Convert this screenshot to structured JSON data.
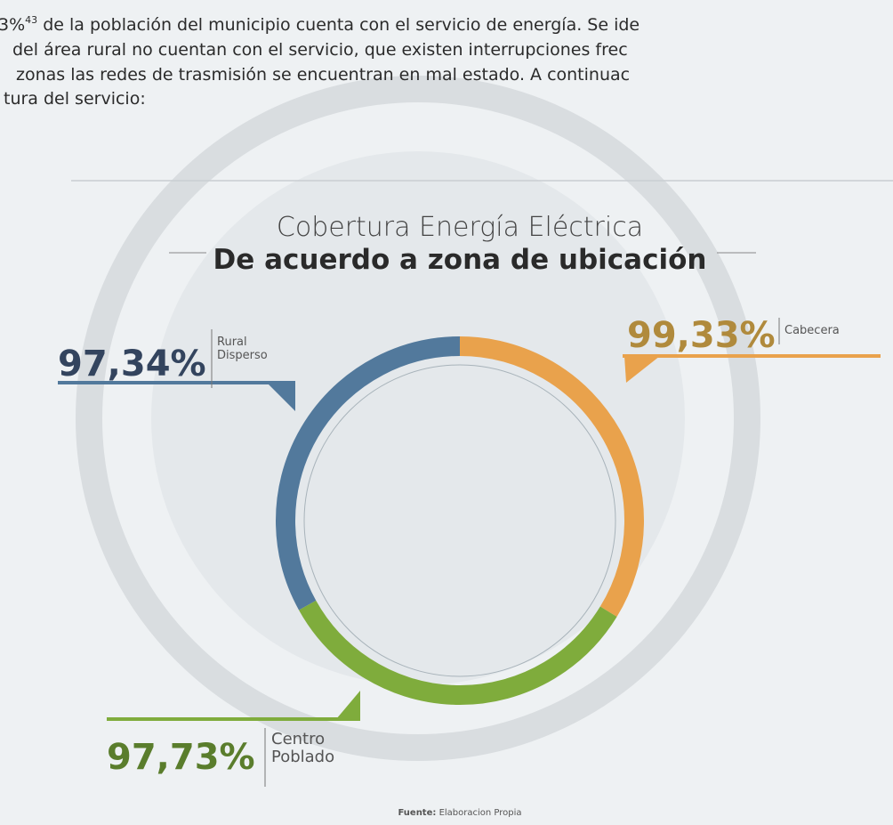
{
  "paragraph": {
    "line_0_start": "3%",
    "line_0_sup": "43",
    "line_0_end": " de la población del municipio cuenta con el servicio de energía. Se ide",
    "line_1": "del área rural no cuentan con el servicio, que existen interrupciones frec",
    "line_2": "zonas las redes de trasmisión se encuentran en mal estado. A continuac",
    "line_3": "tura del servicio:"
  },
  "chart_data": {
    "type": "pie",
    "title": "Cobertura Energía Eléctrica",
    "subtitle": "De acuerdo a zona de ubicación",
    "categories": [
      "Cabecera",
      "Centro Poblado",
      "Rural Disperso"
    ],
    "values": [
      99.33,
      97.73,
      97.34
    ],
    "value_labels": [
      "99,33%",
      "97,73%",
      "97,34%"
    ],
    "colors": [
      "#e9a24c",
      "#7fac3c",
      "#52799c"
    ]
  },
  "source": {
    "label": "Fuente:",
    "text": "Elaboracion Propia"
  }
}
